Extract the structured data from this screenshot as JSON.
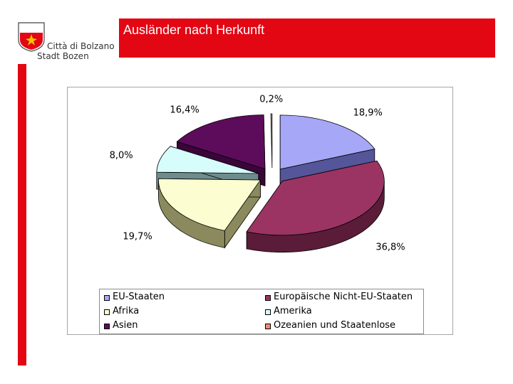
{
  "header": {
    "title": "Ausländer nach Herkunft"
  },
  "logo": {
    "line1": "Città di Bolzano",
    "line2": "Stadt Bozen"
  },
  "colors": {
    "accent": "#e30613"
  },
  "chart_data": {
    "type": "pie",
    "three_d": true,
    "legend_position": "bottom",
    "label_format": "percent",
    "slices": [
      {
        "name": "EU-Staaten",
        "value": 18.9,
        "label": "18,9%",
        "color": "#a7a7f7",
        "dark": "#55559a"
      },
      {
        "name": "Europäische Nicht-EU-Staaten",
        "value": 36.8,
        "label": "36,8%",
        "color": "#9b3462",
        "dark": "#5b1c39"
      },
      {
        "name": "Afrika",
        "value": 19.7,
        "label": "19,7%",
        "color": "#fcfdd0",
        "dark": "#8a8a5e"
      },
      {
        "name": "Amerika",
        "value": 8.0,
        "label": "8,0%",
        "color": "#d6fcfc",
        "dark": "#6e8c8c"
      },
      {
        "name": "Asien",
        "value": 16.4,
        "label": "16,4%",
        "color": "#5d0c5b",
        "dark": "#3a053a"
      },
      {
        "name": "Ozeanien und Staatenlose",
        "value": 0.2,
        "label": "0,2%",
        "color": "#f58a7a",
        "dark": "#a04c40"
      }
    ]
  }
}
